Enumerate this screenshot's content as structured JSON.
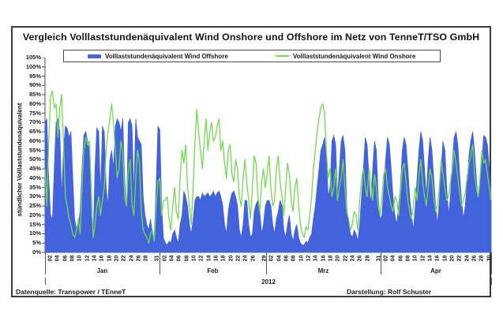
{
  "chart": {
    "title": "Vergleich Volllaststundenäquivalent Wind Onshore und Offshore im Netz von TenneT/TSO GmbH",
    "footer_left": "Datenquelle: Transpower / TEnneT",
    "footer_right": "Darstellung: Rolf Schuster",
    "year_label": "2012"
  },
  "chart_data": {
    "type": "area",
    "title": "Vergleich Volllaststundenäquivalent Wind Onshore und Offshore im Netz von TenneT/TSO GmbH",
    "ylabel": "stündlicher Volllaststundenäquivalent",
    "xlabel": "2012",
    "ylim": [
      0,
      105
    ],
    "ytick_step": 5,
    "ytick_suffix": "%",
    "grid": false,
    "legend_position": "top-center",
    "x_unit": "hourly equivalent, sampled twice per day",
    "months": [
      {
        "label": "Jan",
        "days": 31,
        "tick_days": [
          "02",
          "04",
          "06",
          "08",
          "10",
          "12",
          "14",
          "16",
          "18",
          "20",
          "22",
          "24",
          "26",
          "28",
          "31"
        ]
      },
      {
        "label": "Feb",
        "days": 29,
        "tick_days": [
          "02",
          "04",
          "06",
          "08",
          "10",
          "12",
          "14",
          "16",
          "18",
          "20",
          "22",
          "24",
          "26",
          "29"
        ]
      },
      {
        "label": "Mrz",
        "days": 31,
        "tick_days": [
          "02",
          "04",
          "06",
          "08",
          "10",
          "12",
          "14",
          "16",
          "18",
          "20",
          "22",
          "24",
          "26",
          "28",
          "31"
        ]
      },
      {
        "label": "Apr",
        "days": 30,
        "tick_days": [
          "02",
          "04",
          "06",
          "08",
          "10",
          "12",
          "14",
          "16",
          "18",
          "20",
          "22",
          "24",
          "26",
          "28",
          "30"
        ]
      }
    ],
    "samples_per_day": 2,
    "series": [
      {
        "name": "Volllaststundenäquivalent Wind Offshore",
        "style": "area",
        "color": "#4263db",
        "values": [
          70,
          72,
          40,
          20,
          18,
          45,
          70,
          72,
          65,
          30,
          55,
          68,
          67,
          62,
          65,
          40,
          18,
          12,
          15,
          22,
          45,
          63,
          65,
          60,
          55,
          20,
          5,
          45,
          67,
          65,
          30,
          68,
          65,
          35,
          25,
          50,
          55,
          45,
          68,
          72,
          70,
          65,
          72,
          40,
          20,
          70,
          72,
          68,
          30,
          72,
          62,
          60,
          58,
          30,
          20,
          15,
          12,
          18,
          10,
          8,
          35,
          68,
          66,
          25,
          8,
          5,
          4,
          6,
          5,
          10,
          12,
          8,
          5,
          15,
          20,
          33,
          30,
          25,
          15,
          10,
          18,
          28,
          30,
          30,
          28,
          32,
          30,
          31,
          32,
          30,
          31,
          33,
          30,
          32,
          33,
          30,
          25,
          15,
          10,
          22,
          28,
          32,
          33,
          30,
          25,
          12,
          8,
          15,
          28,
          28,
          15,
          8,
          10,
          22,
          26,
          28,
          22,
          10,
          15,
          25,
          28,
          28,
          25,
          15,
          10,
          18,
          22,
          28,
          25,
          12,
          8,
          15,
          20,
          10,
          6,
          12,
          15,
          8,
          5,
          4,
          4,
          6,
          5,
          8,
          10,
          18,
          25,
          35,
          45,
          55,
          58,
          62,
          50,
          30,
          35,
          60,
          63,
          58,
          30,
          45,
          60,
          63,
          55,
          25,
          15,
          10,
          8,
          12,
          10,
          6,
          15,
          30,
          45,
          62,
          58,
          40,
          25,
          45,
          60,
          55,
          30,
          18,
          20,
          35,
          50,
          62,
          58,
          45,
          30,
          20,
          15,
          25,
          35,
          55,
          62,
          58,
          45,
          30,
          20,
          12,
          25,
          40,
          55,
          65,
          60,
          45,
          30,
          50,
          62,
          55,
          40,
          25,
          15,
          28,
          45,
          60,
          55,
          35,
          20,
          30,
          48,
          62,
          65,
          58,
          42,
          28,
          18,
          25,
          38,
          52,
          60,
          65,
          55,
          40,
          28,
          35,
          50,
          63,
          62,
          58,
          45,
          30
        ]
      },
      {
        "name": "Volllaststundenäquivalent Wind Onshore",
        "style": "line",
        "color": "#70db4f",
        "values": [
          45,
          25,
          60,
          84,
          87,
          78,
          80,
          62,
          78,
          85,
          60,
          30,
          25,
          18,
          15,
          10,
          8,
          12,
          18,
          10,
          35,
          55,
          62,
          58,
          60,
          35,
          8,
          15,
          25,
          30,
          20,
          28,
          35,
          55,
          65,
          72,
          80,
          70,
          55,
          40,
          45,
          60,
          55,
          30,
          25,
          45,
          50,
          25,
          20,
          40,
          55,
          48,
          22,
          12,
          10,
          8,
          5,
          10,
          12,
          6,
          25,
          38,
          40,
          20,
          28,
          28,
          30,
          18,
          12,
          25,
          35,
          22,
          18,
          40,
          55,
          48,
          58,
          35,
          25,
          15,
          35,
          60,
          77,
          65,
          55,
          45,
          60,
          72,
          55,
          65,
          70,
          60,
          62,
          68,
          72,
          55,
          60,
          48,
          40,
          55,
          58,
          42,
          38,
          50,
          45,
          30,
          25,
          40,
          50,
          38,
          28,
          18,
          35,
          52,
          48,
          30,
          22,
          38,
          45,
          35,
          42,
          52,
          35,
          25,
          28,
          45,
          52,
          38,
          30,
          20,
          35,
          48,
          42,
          28,
          22,
          35,
          40,
          25,
          15,
          10,
          8,
          14,
          12,
          20,
          30,
          45,
          55,
          65,
          72,
          78,
          80,
          75,
          55,
          40,
          45,
          30,
          35,
          45,
          28,
          35,
          40,
          50,
          35,
          22,
          18,
          12,
          15,
          22,
          20,
          12,
          28,
          40,
          45,
          35,
          30,
          45,
          38,
          28,
          42,
          35,
          25,
          20,
          30,
          42,
          45,
          35,
          30,
          25,
          22,
          30,
          28,
          20,
          32,
          45,
          48,
          38,
          28,
          22,
          18,
          25,
          35,
          28,
          42,
          50,
          38,
          30,
          25,
          35,
          45,
          40,
          30,
          22,
          25,
          35,
          50,
          42,
          35,
          28,
          30,
          38,
          45,
          55,
          48,
          40,
          32,
          25,
          28,
          32,
          40,
          48,
          52,
          58,
          42,
          35,
          30,
          40,
          55,
          48,
          50,
          42,
          35,
          28
        ]
      }
    ]
  }
}
